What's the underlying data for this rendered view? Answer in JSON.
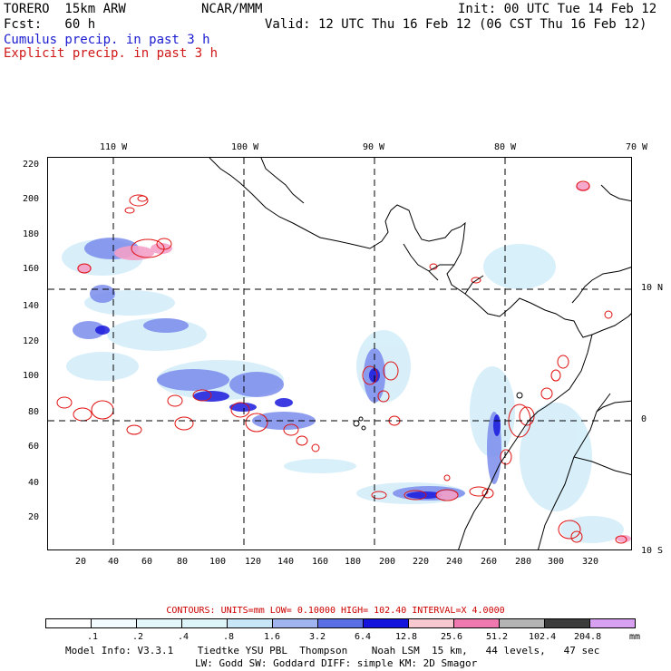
{
  "header": {
    "model_name": "TORERO  15km ARW",
    "org": "NCAR/MMM",
    "init": "Init: 00 UTC Tue 14 Feb 12",
    "fcst": "Fcst:   60 h",
    "valid": "Valid: 12 UTC Thu 16 Feb 12 (06 CST Thu 16 Feb 12)",
    "cumulus_label": "Cumulus precip. in past 3 h",
    "explicit_label": "Explicit precip. in past 3 h"
  },
  "axes": {
    "lon_labels": [
      "110 W",
      "100 W",
      "90 W",
      "80 W",
      "70 W"
    ],
    "lat_labels": [
      "10 N",
      "0",
      "10 S"
    ],
    "x_ticks": [
      "20",
      "40",
      "60",
      "80",
      "100",
      "120",
      "140",
      "160",
      "180",
      "200",
      "220",
      "240",
      "260",
      "280",
      "300",
      "320"
    ],
    "y_ticks": [
      "220",
      "200",
      "180",
      "160",
      "140",
      "120",
      "100",
      "80",
      "60",
      "40",
      "20"
    ]
  },
  "contours": {
    "text": "CONTOURS:  UNITS=mm  LOW= 0.10000      HIGH=  102.40      INTERVAL=X  4.0000"
  },
  "colorbar": {
    "levels": [
      ".1",
      ".2",
      ".4",
      ".8",
      "1.6",
      "3.2",
      "6.4",
      "12.8",
      "25.6",
      "51.2",
      "102.4",
      "204.8"
    ],
    "units": "mm",
    "colors": [
      "#ffffff",
      "#f2fbff",
      "#e4f7fb",
      "#ddf4f8",
      "#c8e6f8",
      "#a0b4f0",
      "#5a6ee6",
      "#1414dc",
      "#f8c8d0",
      "#f07ab0",
      "#b4b4b4",
      "#3c3c3c",
      "#d8a0f0"
    ]
  },
  "footer": {
    "line1": "Model Info: V3.3.1    Tiedtke YSU PBL  Thompson    Noah LSM  15 km,   44 levels,   47 sec",
    "line2": "LW: Godd SW: Goddard DIFF: simple KM: 2D Smagor"
  }
}
